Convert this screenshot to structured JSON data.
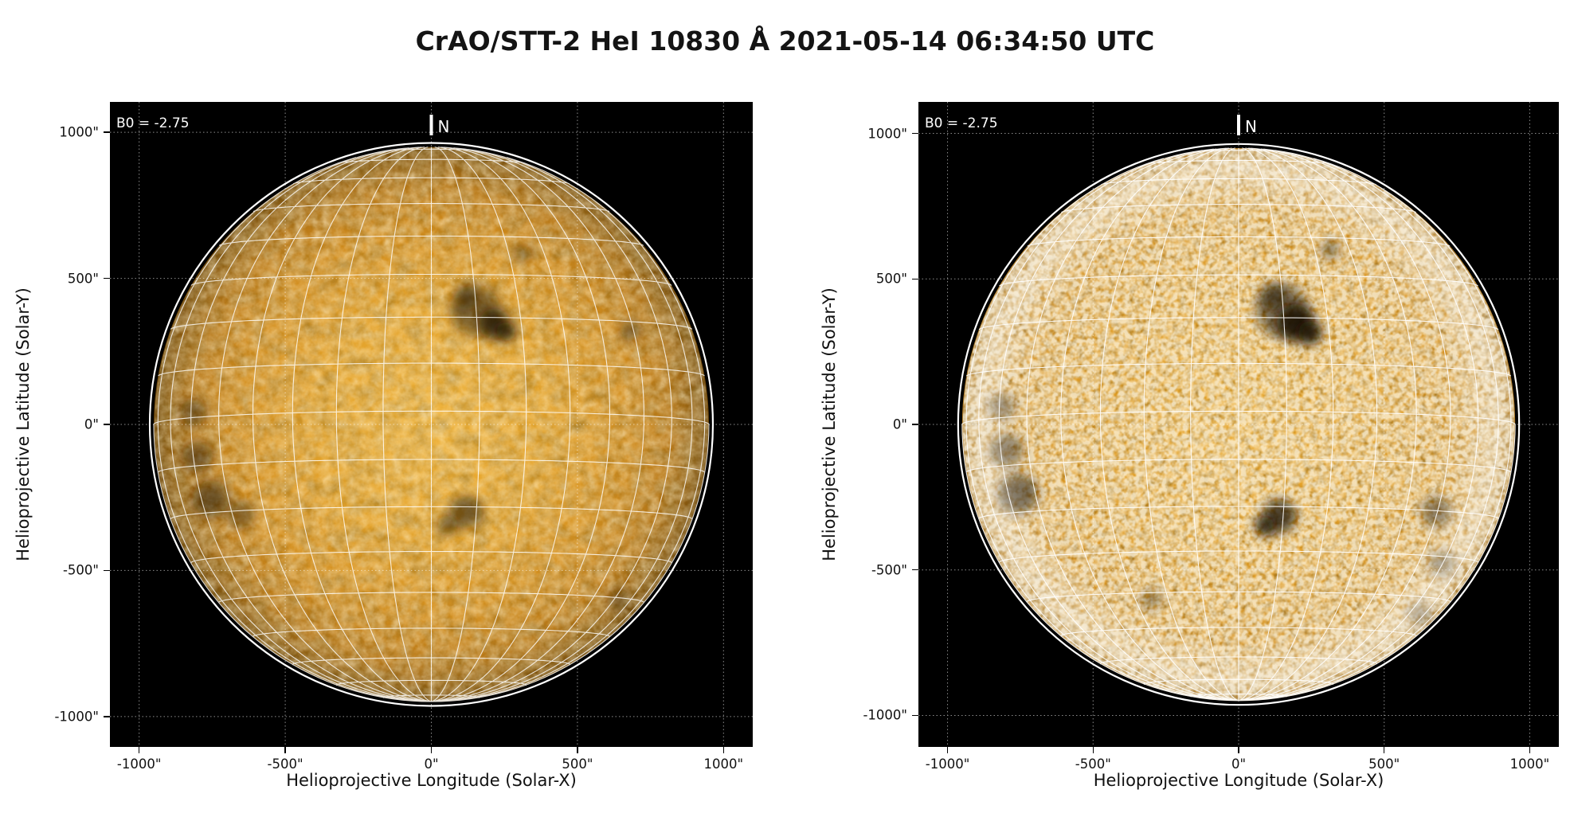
{
  "title": "CrAO/STT-2 HeI 10830 Å 2021-05-14 06:34:50 UTC",
  "colors": {
    "background": "#ffffff",
    "panel_background": "#000000",
    "disk_color": "#dd9a24",
    "grid_line": "#ffffff",
    "limb_line": "#ffffff",
    "dotted_gridline": "#ffffff",
    "tick_text": "#111111",
    "annotation_text": "#ffffff"
  },
  "chart_data": [
    {
      "type": "solar-disk-map",
      "name": "left",
      "annotation_b0": "B0 = -2.75",
      "north_label": "N",
      "xlabel": "Helioprojective Longitude (Solar-X)",
      "ylabel": "Helioprojective Latitude (Solar-Y)",
      "xlim": [
        -1100,
        1100
      ],
      "ylim": [
        -1100,
        1100
      ],
      "x_ticks": [
        {
          "value": -1000,
          "label": "-1000\""
        },
        {
          "value": -500,
          "label": "-500\""
        },
        {
          "value": 0,
          "label": "0\""
        },
        {
          "value": 500,
          "label": "500\""
        },
        {
          "value": 1000,
          "label": "1000\""
        }
      ],
      "y_ticks": [
        {
          "value": 1000,
          "label": "1000\""
        },
        {
          "value": 500,
          "label": "500\""
        },
        {
          "value": 0,
          "label": "0\""
        },
        {
          "value": -500,
          "label": "-500\""
        },
        {
          "value": -1000,
          "label": "-1000\""
        }
      ],
      "solar_radius_arcsec": 950,
      "b0_deg": -2.75,
      "grid_spacing_deg": 10,
      "render_style": "smooth",
      "active_regions": [
        {
          "x": 150,
          "y": 390,
          "r": 75,
          "opacity": 0.45
        },
        {
          "x": 215,
          "y": 345,
          "r": 45,
          "opacity": 0.72
        },
        {
          "x": 255,
          "y": 318,
          "r": 28,
          "opacity": 0.8
        },
        {
          "x": 120,
          "y": 432,
          "r": 35,
          "opacity": 0.42
        },
        {
          "x": 315,
          "y": 585,
          "r": 24,
          "opacity": 0.45
        },
        {
          "x": 680,
          "y": 320,
          "r": 30,
          "opacity": 0.4
        },
        {
          "x": 120,
          "y": -300,
          "r": 48,
          "opacity": 0.55
        },
        {
          "x": 55,
          "y": -345,
          "r": 30,
          "opacity": 0.5
        },
        {
          "x": -755,
          "y": -255,
          "r": 55,
          "opacity": 0.5
        },
        {
          "x": -650,
          "y": -310,
          "r": 40,
          "opacity": 0.4
        },
        {
          "x": -800,
          "y": -110,
          "r": 45,
          "opacity": 0.45
        },
        {
          "x": -815,
          "y": 40,
          "r": 40,
          "opacity": 0.4
        },
        {
          "x": 640,
          "y": -600,
          "r": 32,
          "opacity": 0.32
        }
      ]
    },
    {
      "type": "solar-disk-map",
      "name": "right",
      "annotation_b0": "B0 = -2.75",
      "north_label": "N",
      "xlabel": "Helioprojective Longitude (Solar-X)",
      "ylabel": "Helioprojective Latitude (Solar-Y)",
      "xlim": [
        -1100,
        1100
      ],
      "ylim": [
        -1100,
        1100
      ],
      "x_ticks": [
        {
          "value": -1000,
          "label": "-1000\""
        },
        {
          "value": -500,
          "label": "-500\""
        },
        {
          "value": 0,
          "label": "0\""
        },
        {
          "value": 500,
          "label": "500\""
        },
        {
          "value": 1000,
          "label": "1000\""
        }
      ],
      "y_ticks": [
        {
          "value": 1000,
          "label": "1000\""
        },
        {
          "value": 500,
          "label": "500\""
        },
        {
          "value": 0,
          "label": "0\""
        },
        {
          "value": -500,
          "label": "-500\""
        },
        {
          "value": -1000,
          "label": "-1000\""
        }
      ],
      "solar_radius_arcsec": 950,
      "b0_deg": -2.75,
      "grid_spacing_deg": 10,
      "render_style": "grainy",
      "active_regions": [
        {
          "x": 150,
          "y": 390,
          "r": 80,
          "opacity": 0.5
        },
        {
          "x": 195,
          "y": 350,
          "r": 55,
          "opacity": 0.85
        },
        {
          "x": 245,
          "y": 315,
          "r": 35,
          "opacity": 0.9
        },
        {
          "x": 120,
          "y": 440,
          "r": 40,
          "opacity": 0.5
        },
        {
          "x": 315,
          "y": 600,
          "r": 26,
          "opacity": 0.5
        },
        {
          "x": 140,
          "y": -315,
          "r": 50,
          "opacity": 0.75
        },
        {
          "x": 90,
          "y": -350,
          "r": 28,
          "opacity": 0.9
        },
        {
          "x": -760,
          "y": -240,
          "r": 60,
          "opacity": 0.6
        },
        {
          "x": -800,
          "y": -90,
          "r": 50,
          "opacity": 0.5
        },
        {
          "x": -815,
          "y": 60,
          "r": 40,
          "opacity": 0.45
        },
        {
          "x": 680,
          "y": -300,
          "r": 45,
          "opacity": 0.45
        },
        {
          "x": 700,
          "y": -480,
          "r": 40,
          "opacity": 0.42
        },
        {
          "x": 620,
          "y": -650,
          "r": 35,
          "opacity": 0.4
        },
        {
          "x": -300,
          "y": -600,
          "r": 30,
          "opacity": 0.38
        }
      ]
    }
  ]
}
